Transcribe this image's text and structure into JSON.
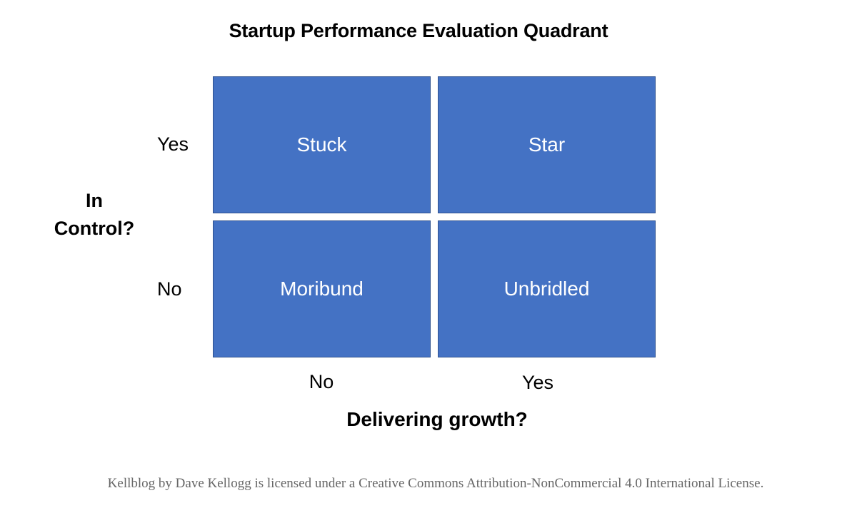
{
  "title": "Startup Performance Evaluation Quadrant",
  "quadrants": {
    "top_left": "Stuck",
    "top_right": "Star",
    "bottom_left": "Moribund",
    "bottom_right": "Unbridled"
  },
  "y_axis": {
    "label_line1": "In",
    "label_line2": "Control?",
    "ticks": [
      "Yes",
      "No"
    ]
  },
  "x_axis": {
    "label": "Delivering growth?",
    "ticks": [
      "No",
      "Yes"
    ]
  },
  "footer": {
    "license": "Kellblog by Dave Kellogg is licensed under a Creative Commons Attribution-NonCommercial 4.0 International License."
  },
  "colors": {
    "quadrant_fill": "#4472c4",
    "quadrant_border": "#2f528f",
    "quadrant_text": "#ffffff",
    "license_text": "#666666"
  }
}
